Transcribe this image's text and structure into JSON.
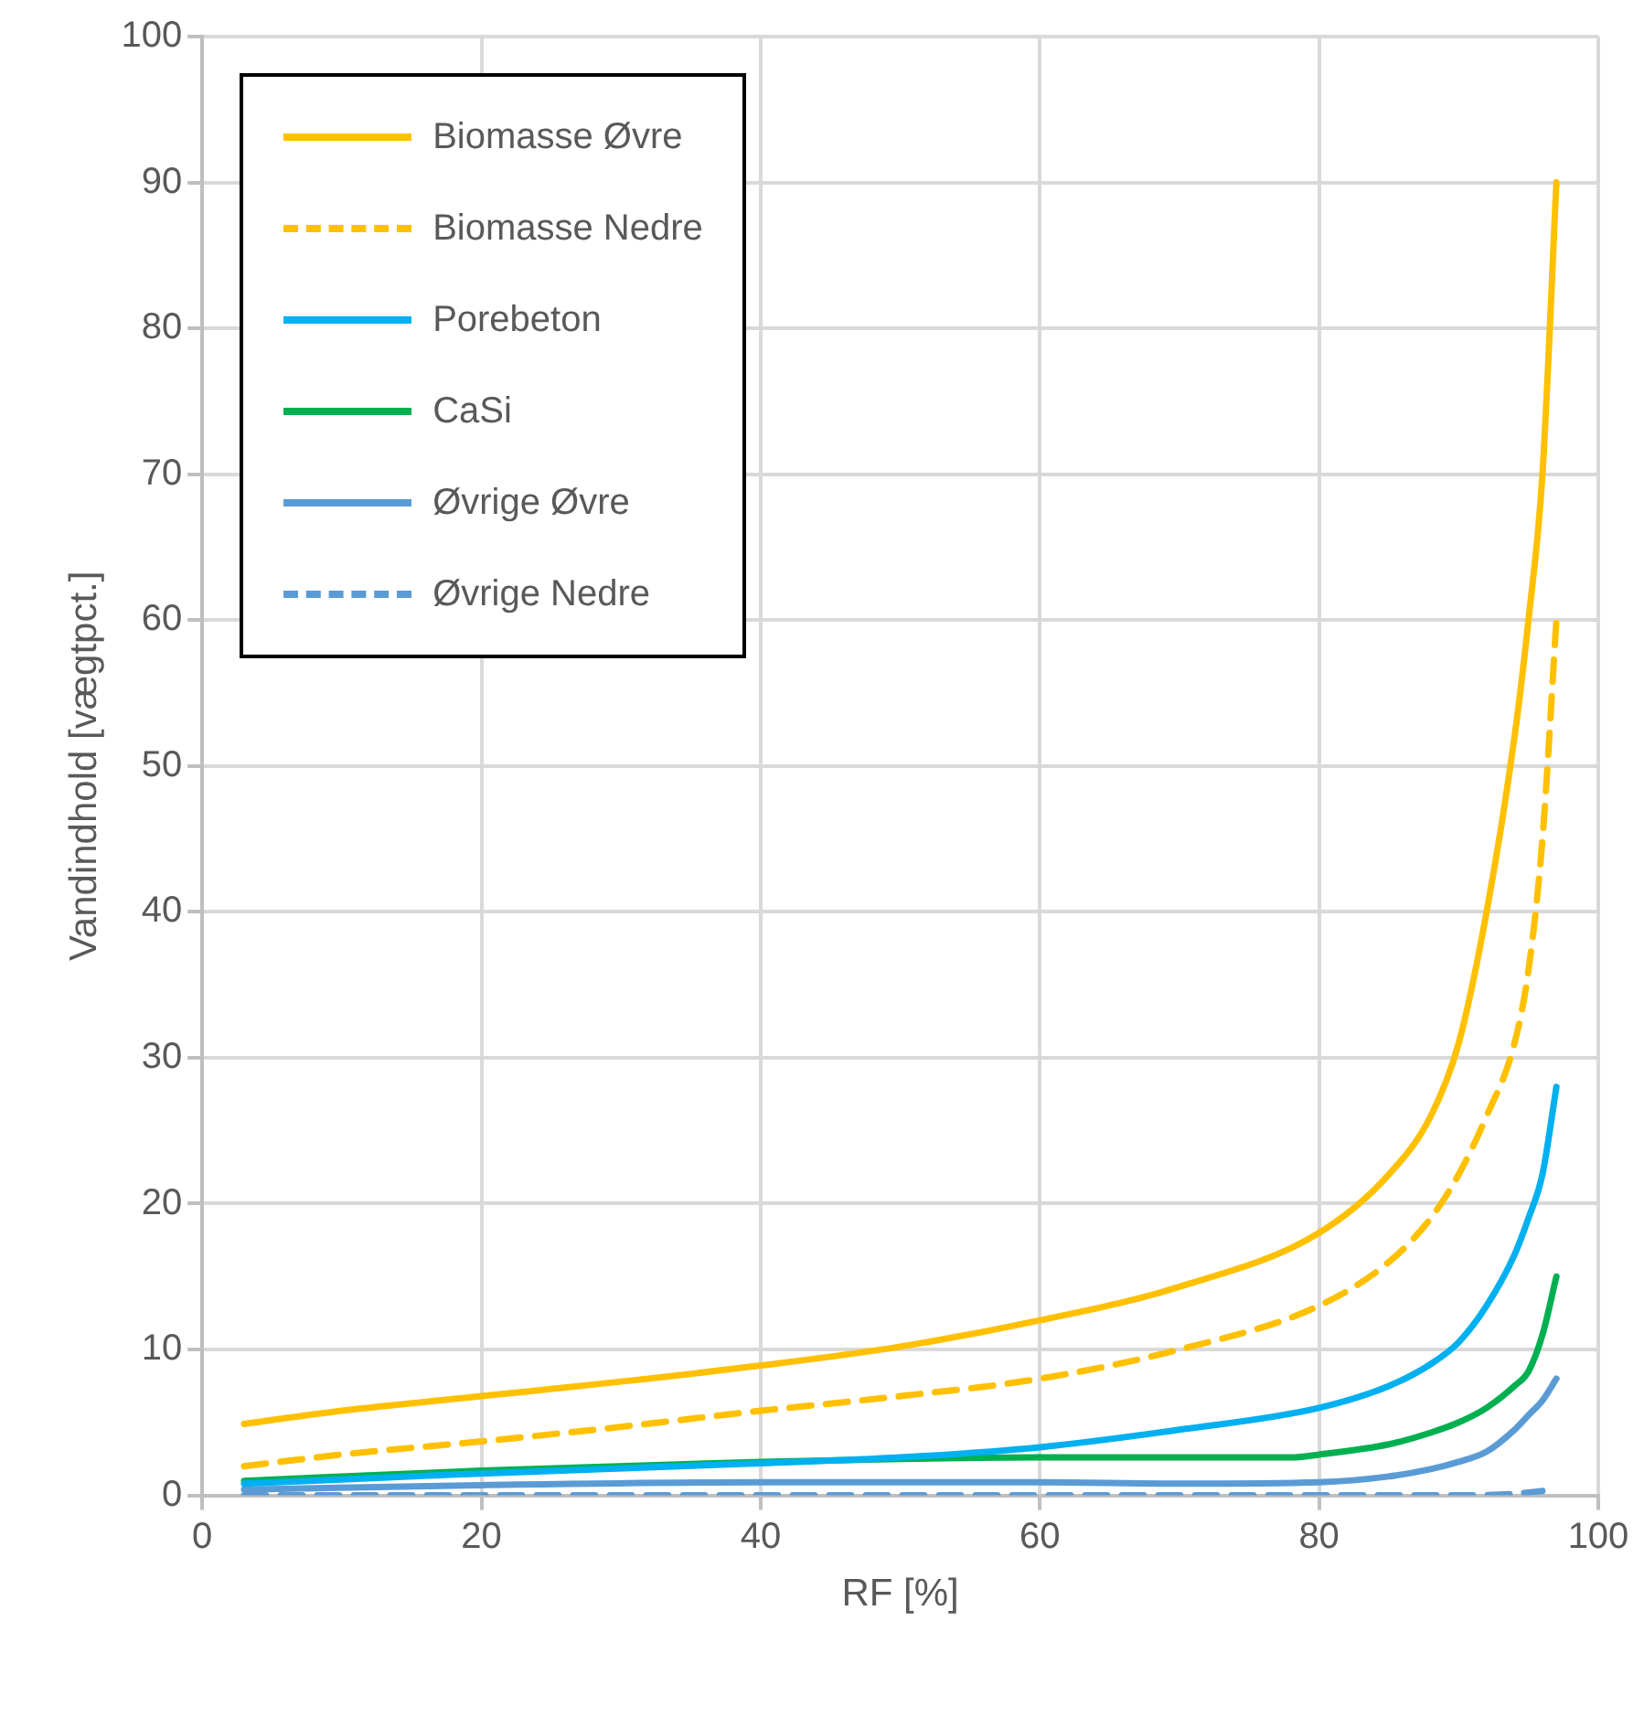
{
  "chart_data": {
    "type": "line",
    "xlabel": "RF [%]",
    "ylabel": "Vandindhold [vægtpct.]",
    "xlim": [
      0,
      100
    ],
    "xticks": [
      0,
      20,
      40,
      60,
      80,
      100
    ],
    "ylim": [
      0,
      100
    ],
    "yticks": [
      0,
      10,
      20,
      30,
      40,
      50,
      60,
      70,
      80,
      90,
      100
    ],
    "grid": true,
    "legend": "top left",
    "marker": "none",
    "series": [
      {
        "name": "Biomasse Øvre",
        "color": "#ffc000",
        "line_style": "solid",
        "x": [
          3,
          10,
          20,
          30,
          40,
          50,
          60,
          70,
          80,
          85,
          88,
          90,
          92,
          94,
          95,
          96,
          97
        ],
        "values": [
          4.9,
          5.8,
          6.8,
          7.8,
          8.9,
          10.2,
          12,
          14.3,
          18,
          22,
          26,
          31,
          40,
          52,
          60,
          70,
          90
        ]
      },
      {
        "name": "Biomasse Nedre",
        "color": "#ffc000",
        "line_style": "dashed",
        "x": [
          3,
          10,
          20,
          30,
          40,
          50,
          60,
          70,
          80,
          85,
          88,
          90,
          92,
          94,
          95,
          96,
          97
        ],
        "values": [
          2,
          2.8,
          3.7,
          4.7,
          5.8,
          6.8,
          8,
          10,
          13,
          16,
          19,
          22,
          26,
          31,
          36,
          45,
          60
        ]
      },
      {
        "name": "Porebeton",
        "color": "#00b0f0",
        "line_style": "solid",
        "x": [
          3,
          20,
          40,
          50,
          60,
          70,
          80,
          85,
          88,
          90,
          92,
          94,
          95,
          96,
          97
        ],
        "values": [
          0.8,
          1.5,
          2.2,
          2.6,
          3.3,
          4.5,
          6,
          7.5,
          9,
          10.5,
          13,
          16.5,
          19,
          22,
          28
        ]
      },
      {
        "name": "CaSi",
        "color": "#00b050",
        "line_style": "solid",
        "x": [
          3,
          20,
          40,
          50,
          60,
          70,
          78,
          80,
          85,
          88,
          90,
          92,
          94,
          95,
          96,
          97
        ],
        "values": [
          1,
          1.7,
          2.3,
          2.5,
          2.6,
          2.6,
          2.6,
          2.8,
          3.5,
          4.3,
          5,
          6,
          7.5,
          8.5,
          11,
          15
        ]
      },
      {
        "name": "Øvrige Øvre",
        "color": "#5b9bd5",
        "line_style": "solid",
        "x": [
          3,
          20,
          40,
          50,
          60,
          70,
          80,
          85,
          88,
          90,
          92,
          94,
          95,
          96,
          97
        ],
        "values": [
          0.4,
          0.7,
          0.9,
          0.9,
          0.9,
          0.8,
          0.9,
          1.3,
          1.8,
          2.3,
          3,
          4.5,
          5.5,
          6.5,
          8
        ]
      },
      {
        "name": "Øvrige Nedre",
        "color": "#5b9bd5",
        "line_style": "dashed",
        "x": [
          3,
          20,
          40,
          60,
          80,
          90,
          94,
          95,
          96
        ],
        "values": [
          0,
          0,
          0,
          0,
          0,
          0,
          0.1,
          0.2,
          0.3
        ]
      }
    ]
  }
}
